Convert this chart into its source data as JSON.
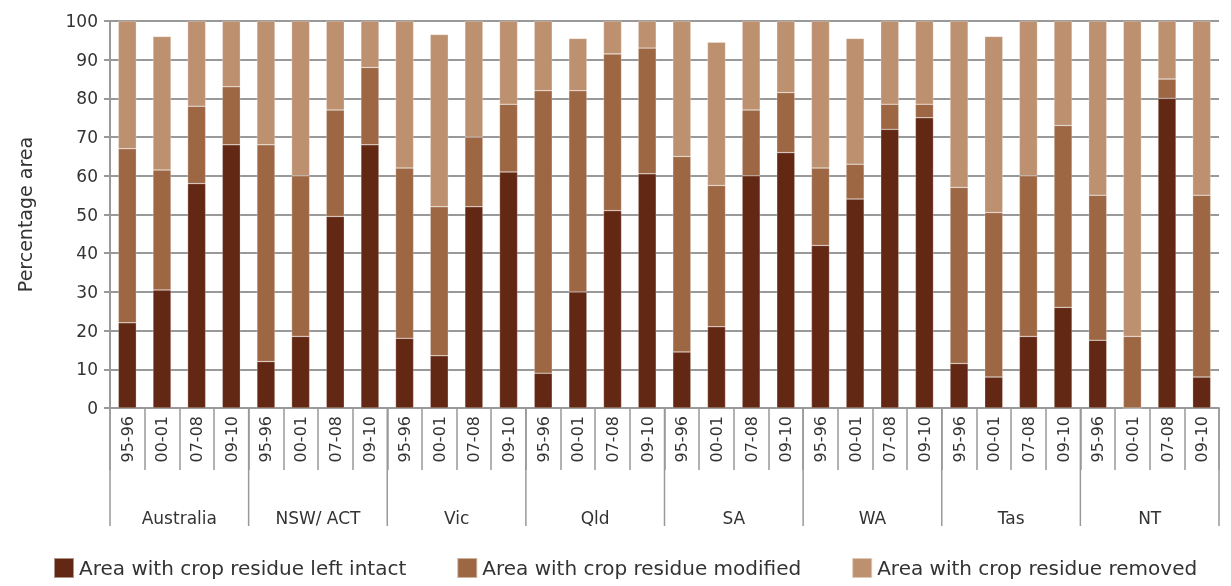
{
  "chart_data": {
    "type": "bar",
    "stacked": true,
    "ylabel": "Percentage area",
    "categories": [
      "95-96",
      "00-01",
      "07-08",
      "09-10",
      "95-96",
      "00-01",
      "07-08",
      "09-10",
      "95-96",
      "00-01",
      "07-08",
      "09-10",
      "95-96",
      "00-01",
      "07-08",
      "09-10",
      "95-96",
      "00-01",
      "07-08",
      "09-10",
      "95-96",
      "00-01",
      "07-08",
      "09-10",
      "95-96",
      "00-01",
      "07-08",
      "09-10",
      "95-96",
      "00-01",
      "07-08",
      "09-10"
    ],
    "annotations": [
      "Australia",
      "NSW/ ACT",
      "Vic",
      "Qld",
      "SA",
      "WA",
      "Tas",
      "NT"
    ],
    "series": [
      {
        "name": "Area with crop residue left intact",
        "color": "#632813",
        "values": [
          22,
          30.5,
          58,
          68,
          12,
          18.5,
          49.5,
          68,
          18,
          13.5,
          52,
          61,
          9,
          30,
          51,
          60.5,
          14.5,
          21,
          60,
          66,
          42,
          54,
          72,
          75,
          11.5,
          8,
          18.5,
          26,
          17.5,
          0,
          80,
          8
        ]
      },
      {
        "name": "Area with crop residue modified",
        "color": "#9d6744",
        "values": [
          45,
          31,
          20,
          15,
          56,
          41.5,
          27.5,
          20,
          44,
          38.5,
          18,
          17.5,
          73,
          52,
          40.5,
          32.5,
          50.5,
          36.5,
          17,
          15.5,
          20,
          9,
          6.5,
          3.5,
          45.5,
          42.5,
          41.5,
          47,
          37.5,
          18.5,
          5,
          47
        ]
      },
      {
        "name": "Area with crop residue removed",
        "color": "#bd9070",
        "values": [
          33,
          34.5,
          22,
          17,
          32,
          40,
          23,
          12,
          38,
          44.5,
          30,
          21.5,
          18,
          13.5,
          8.5,
          7,
          35,
          37,
          23,
          18.5,
          38,
          32.5,
          21.5,
          21.5,
          43,
          45.5,
          40,
          27,
          45,
          81.5,
          15,
          45
        ]
      }
    ],
    "ylim": [
      0,
      100
    ],
    "yticks": [
      0,
      10,
      20,
      30,
      40,
      50,
      60,
      70,
      80,
      90,
      100
    ],
    "grid": "y",
    "legend": "bottom left"
  }
}
